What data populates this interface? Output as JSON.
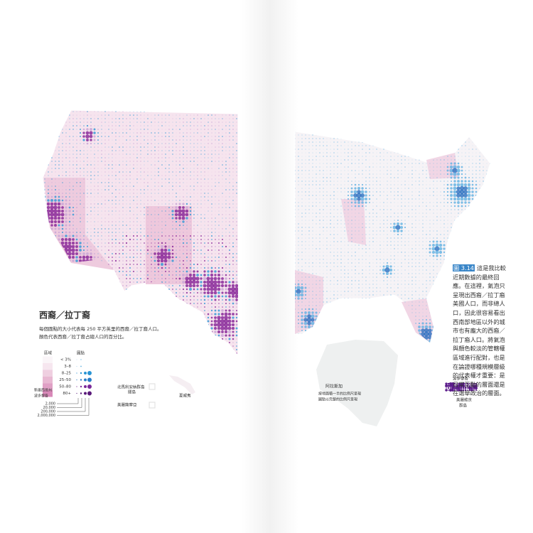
{
  "left_page": {
    "title": "西裔／拉丁裔",
    "description": [
      "每個圓點的大小代表每 250 平方英里的西裔／拉丁裔人口。",
      "顏色代表西裔／拉丁裔占總人口的百分比。"
    ],
    "legend": {
      "area_header": "區域",
      "dot_header": "圓點",
      "classes": [
        "< 3%",
        "3–8",
        "8–25",
        "25–50",
        "50–80",
        "80+"
      ],
      "area_notes": [
        "新墨西哥州",
        "波多黎各"
      ],
      "size_labels": [
        "2,000",
        "20,000",
        "200,000",
        "2,000,000"
      ]
    },
    "insets": [
      "北馬利安納群島",
      "關島",
      "夏威夷",
      "美屬薩摩亞"
    ]
  },
  "right_page": {
    "alaska": "阿拉斯加",
    "alaska_note": [
      "按地面積一半的比例尺呈現",
      "圓點以完整的比例尺呈現"
    ],
    "puerto_rico": "波多黎各",
    "virgin_islands": [
      "美屬維京",
      "群島"
    ],
    "caption": {
      "figure": "圖 3.14",
      "text": "這是我比較近期數據的最終回應。在這裡，氣泡只呈現出西裔／拉丁裔美國人口，而非總人口，因此很容易看出西南部地區以外的城市也有龐大的西裔／拉丁裔人口。將氣泡與顏色較淡的管轄權區域進行配對，也是在論證哪種規模層級的代表權才重要：是日常互動的層面還是在選舉政治的層面。"
    }
  }
}
